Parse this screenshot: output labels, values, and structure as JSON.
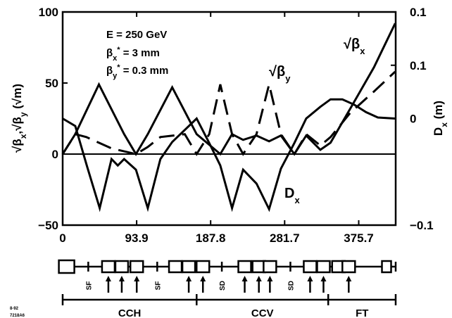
{
  "chart_data": {
    "type": "line",
    "x": [
      0,
      23.5,
      47,
      70.4,
      93.9,
      117.4,
      140.9,
      164.3,
      187.8,
      211.3,
      234.7,
      258.2,
      281.7,
      305.2,
      328.6,
      352.1,
      375.7,
      399.1,
      422.6
    ],
    "xlim": [
      0,
      422.6
    ],
    "x_ticks": [
      "0",
      "93.9",
      "187.8",
      "281.7",
      "375.7"
    ],
    "left_axis": {
      "label": "√βx,√βy (√m)",
      "ylim": [
        -50,
        100
      ],
      "ticks": [
        "100",
        "50",
        "0",
        "−50"
      ],
      "tick_values": [
        100,
        50,
        0,
        -50
      ]
    },
    "right_axis": {
      "label": "Dx (m)",
      "ylim": [
        -0.1,
        0.1
      ],
      "ticks": [
        "0.1",
        "0.1",
        "0",
        "−0.1"
      ],
      "tick_values": [
        0.1,
        0.05,
        0,
        -0.1
      ]
    },
    "annotations": [
      "E  = 250 GeV",
      "βx* = 3 mm",
      "βy* = 0.3 mm"
    ],
    "series": [
      {
        "name": "√βx",
        "style": "solid",
        "axis": "left",
        "x": [
          0,
          16,
          46,
          78,
          93,
          108,
          139,
          170,
          200,
          215,
          229,
          246,
          262,
          277,
          294,
          309,
          327,
          340,
          365,
          395,
          422
        ],
        "y": [
          0,
          14,
          49,
          14,
          0,
          14,
          47,
          14,
          0,
          14,
          10,
          13,
          9,
          13,
          0,
          13,
          3,
          8,
          32,
          61,
          92
        ]
      },
      {
        "name": "√βy",
        "style": "dashed",
        "axis": "left",
        "x": [
          0,
          16,
          30,
          62,
          93,
          108,
          124,
          155,
          170,
          186,
          200,
          215,
          229,
          246,
          262,
          277,
          294,
          309,
          327,
          340,
          365,
          395,
          422
        ],
        "y": [
          0,
          14,
          12,
          4,
          0,
          5,
          12,
          14,
          0,
          14,
          49,
          14,
          0,
          14,
          49,
          14,
          0,
          14,
          6,
          12,
          29,
          44,
          58
        ]
      },
      {
        "name": "Dx",
        "style": "solid",
        "axis": "right",
        "x": [
          0,
          16,
          31,
          47,
          62,
          70,
          78,
          93,
          108,
          124,
          139,
          170,
          186,
          200,
          215,
          229,
          246,
          262,
          277,
          294,
          309,
          327,
          340,
          355,
          370,
          385,
          400,
          422
        ],
        "y": [
          0,
          -0.007,
          -0.045,
          -0.084,
          -0.038,
          -0.044,
          -0.038,
          -0.048,
          -0.084,
          -0.038,
          -0.022,
          0,
          -0.023,
          -0.044,
          -0.084,
          -0.048,
          -0.061,
          -0.085,
          -0.047,
          -0.023,
          0,
          0.011,
          0.018,
          0.018,
          0.013,
          0.006,
          0.001,
          0
        ]
      }
    ],
    "curve_labels": [
      "√βx",
      "√βy",
      "Dx"
    ],
    "lattice": {
      "magnet_labels": [
        "SF",
        "SF",
        "SD",
        "SD"
      ],
      "sections": [
        "CCH",
        "CCV",
        "FT"
      ]
    },
    "corner_text": [
      "8-92",
      "7218A6"
    ]
  }
}
